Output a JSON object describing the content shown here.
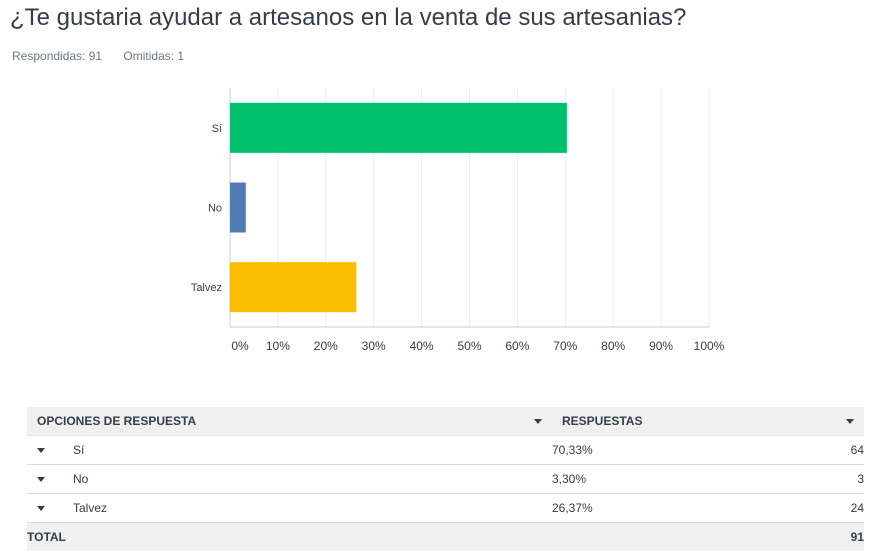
{
  "question": {
    "title": "¿Te gustaria ayudar a artesanos en la venta de sus artesanias?",
    "answered_label": "Respondidas: 91",
    "skipped_label": "Omitidas: 1"
  },
  "chart_data": {
    "type": "bar",
    "orientation": "horizontal",
    "categories": [
      "Sí",
      "No",
      "Talvez"
    ],
    "values": [
      70.33,
      3.3,
      26.37
    ],
    "colors": [
      "#00bf6f",
      "#507cb6",
      "#f9be00"
    ],
    "xlim": [
      0,
      100
    ],
    "xticks": [
      "0%",
      "10%",
      "20%",
      "30%",
      "40%",
      "50%",
      "60%",
      "70%",
      "80%",
      "90%",
      "100%"
    ],
    "grid": true,
    "legend": false
  },
  "table": {
    "headers": {
      "options": "OPCIONES DE RESPUESTA",
      "responses": "RESPUESTAS"
    },
    "rows": [
      {
        "option": "Sí",
        "percent": "70,33%",
        "count": "64"
      },
      {
        "option": "No",
        "percent": "3,30%",
        "count": "3"
      },
      {
        "option": "Talvez",
        "percent": "26,37%",
        "count": "24"
      }
    ],
    "total_label": "TOTAL",
    "total_count": "91"
  }
}
